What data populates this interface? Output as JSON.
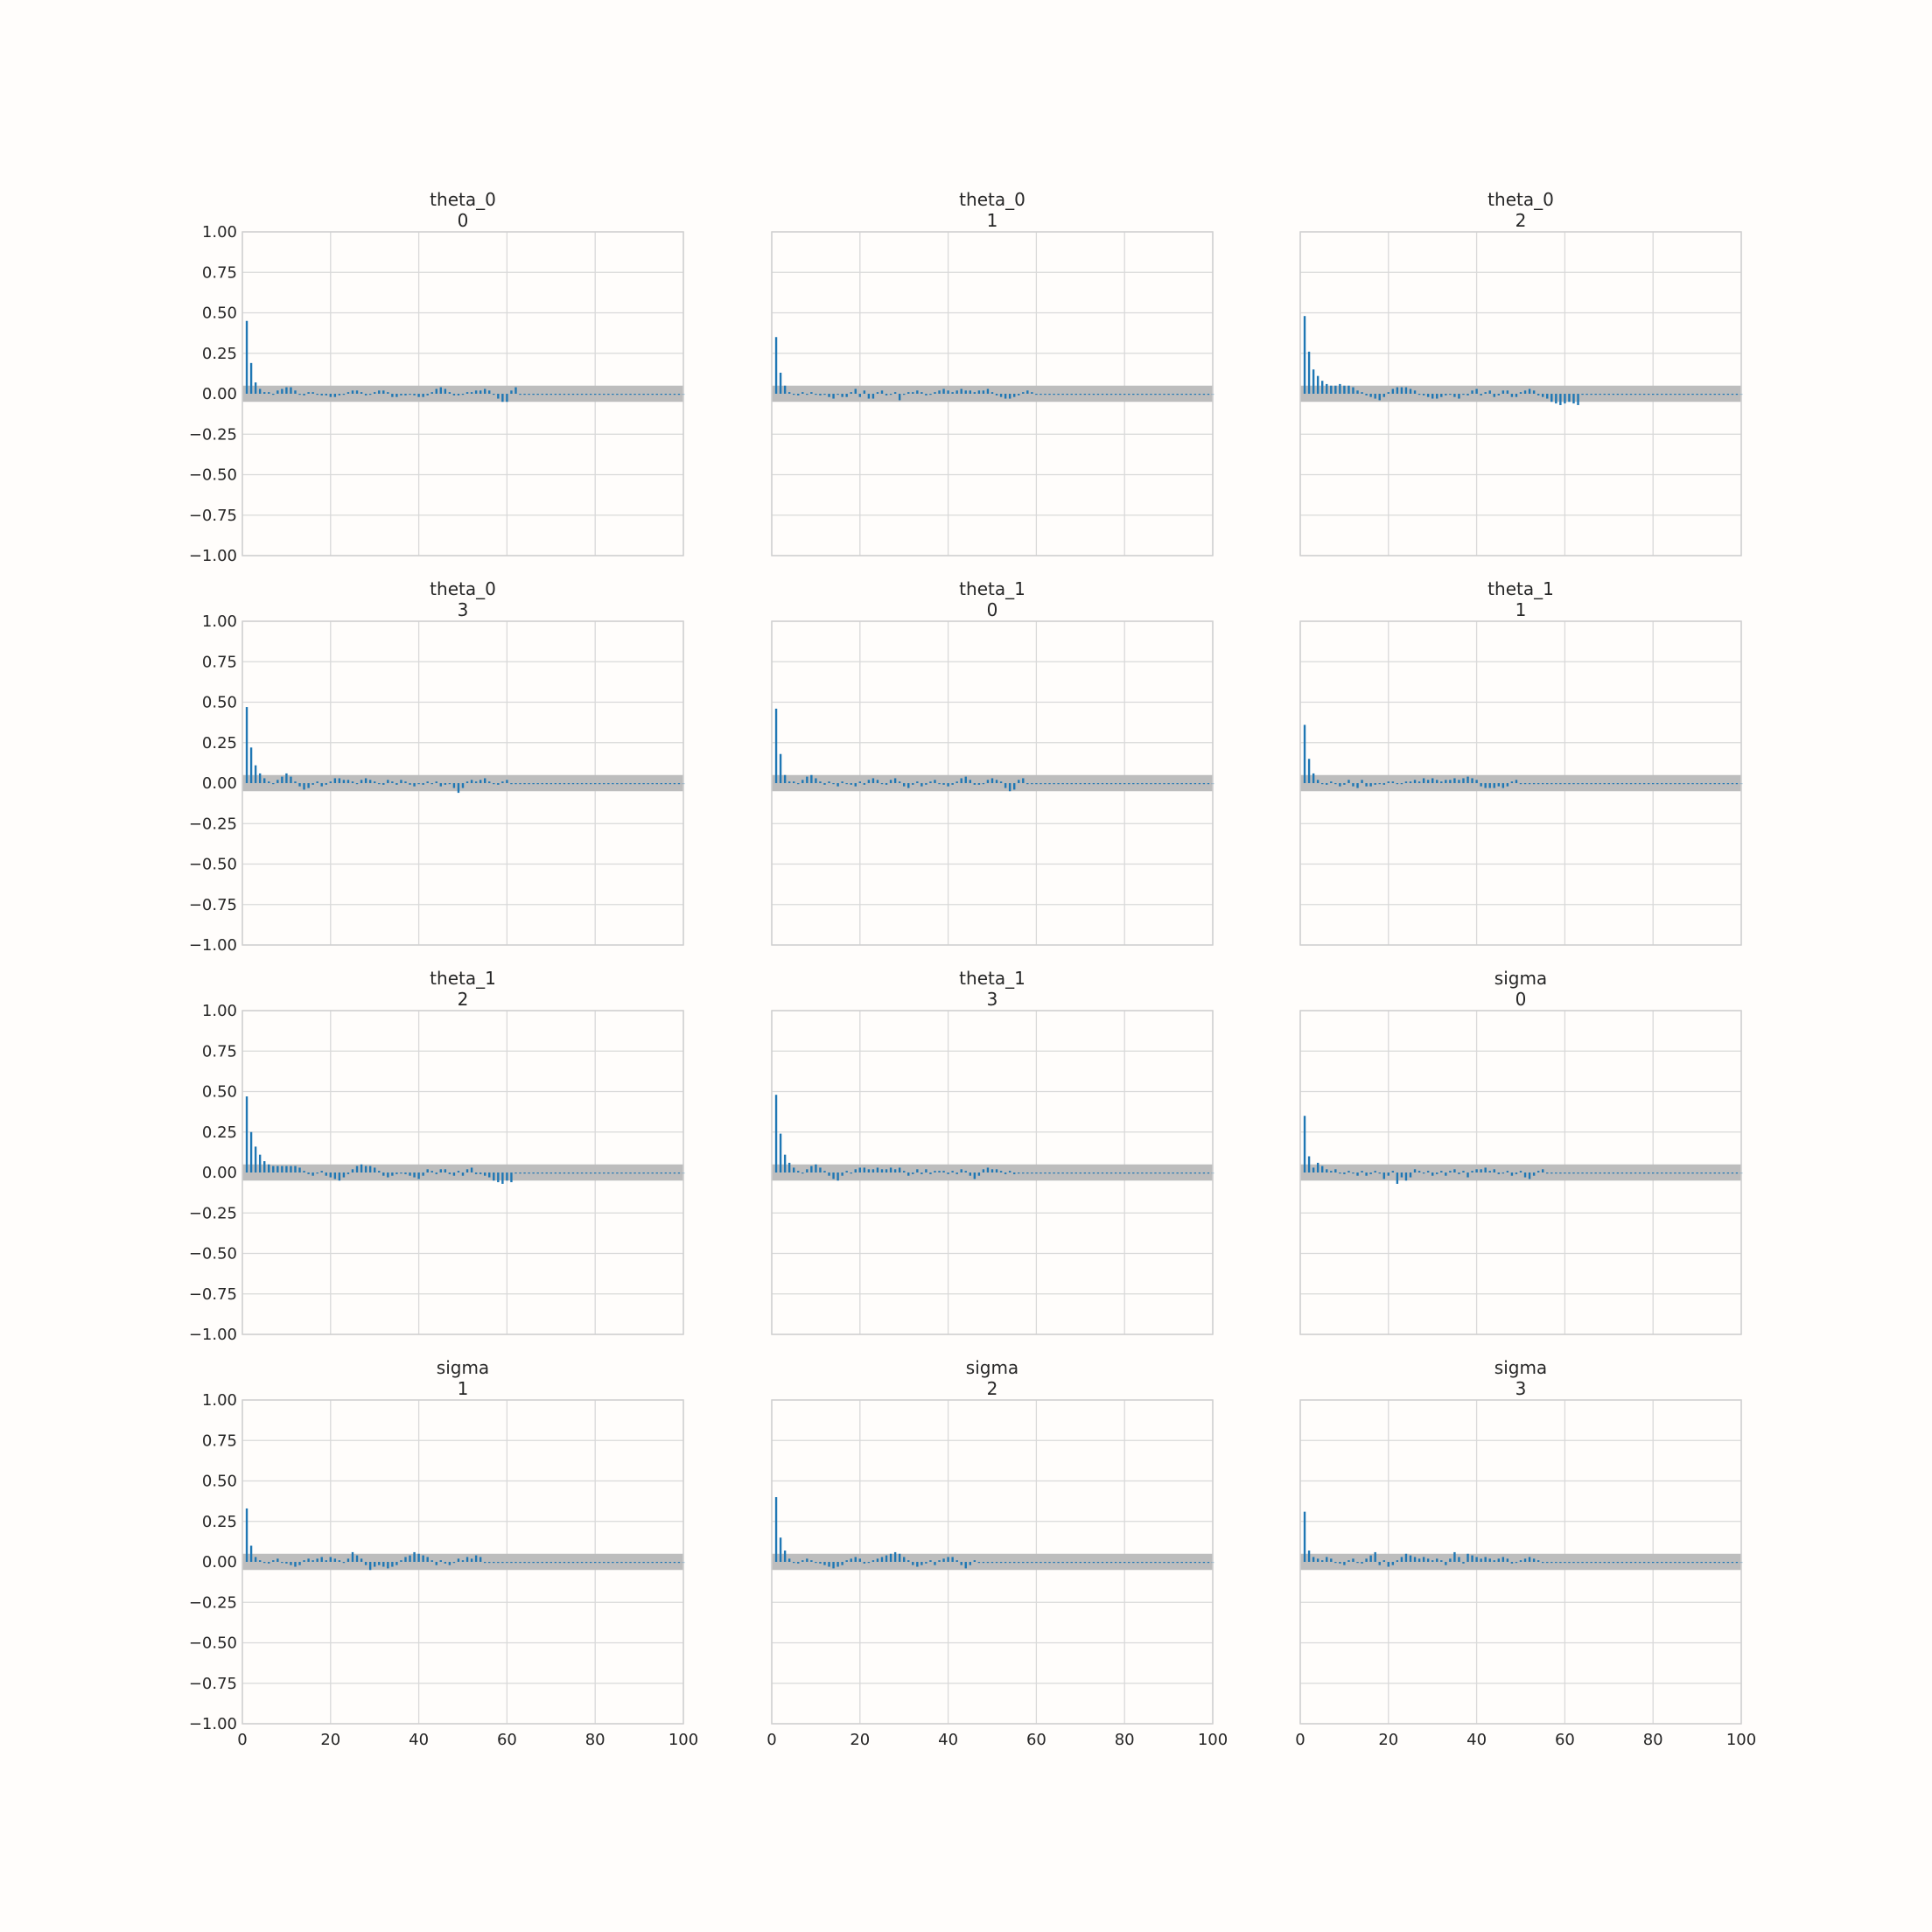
{
  "figure": {
    "background": "#fffdfb",
    "bar_color": "#1f77b4",
    "band_color": "#bdbdbd",
    "grid_color": "#d9d9d9",
    "text_color": "#262626"
  },
  "chart_data": [
    {
      "type": "bar",
      "title": "theta_0",
      "subtitle": "0",
      "xlim": [
        0,
        100
      ],
      "ylim": [
        -1,
        1
      ],
      "xticks": [
        "0",
        "20",
        "40",
        "60",
        "80",
        "100"
      ],
      "yticks": [
        "1.00",
        "0.75",
        "0.50",
        "0.25",
        "0.00",
        "−0.25",
        "−0.50",
        "−0.75",
        "−1.00"
      ],
      "band": [
        -0.05,
        0.05
      ],
      "lead": [
        0.45,
        0.19,
        0.07,
        0.03,
        0.01
      ],
      "values": [
        0.01,
        0.0,
        0.02,
        0.03,
        0.04,
        0.04,
        0.02,
        0.0,
        -0.01,
        0.01,
        0.01,
        0.0,
        -0.01,
        -0.01,
        -0.02,
        -0.02,
        -0.01,
        0.0,
        0.01,
        0.02,
        0.02,
        0.01,
        -0.01,
        0.0,
        0.01,
        0.02,
        0.02,
        0.01,
        -0.02,
        -0.02,
        -0.01,
        -0.01,
        0.0,
        -0.01,
        -0.02,
        -0.02,
        -0.01,
        0.01,
        0.03,
        0.04,
        0.03,
        0.01,
        -0.01,
        -0.01,
        0.0,
        0.01,
        0.01,
        0.02,
        0.02,
        0.03,
        0.02,
        0.0,
        -0.03,
        -0.05,
        -0.05,
        0.02,
        0.04
      ]
    },
    {
      "type": "bar",
      "title": "theta_0",
      "subtitle": "1",
      "xlim": [
        0,
        100
      ],
      "ylim": [
        -1,
        1
      ],
      "xticks": [
        "0",
        "20",
        "40",
        "60",
        "80",
        "100"
      ],
      "yticks": [
        "1.00",
        "0.75",
        "0.50",
        "0.25",
        "0.00",
        "−0.25",
        "−0.50",
        "−0.75",
        "−1.00"
      ],
      "band": [
        -0.05,
        0.05
      ],
      "lead": [
        0.35,
        0.13,
        0.05,
        0.01
      ],
      "values": [
        0.0,
        -0.01,
        0.01,
        0.0,
        0.01,
        0.0,
        -0.01,
        0.0,
        -0.02,
        -0.03,
        0.0,
        -0.02,
        -0.02,
        0.01,
        0.03,
        -0.02,
        0.02,
        -0.03,
        -0.03,
        0.01,
        0.02,
        -0.01,
        0.0,
        0.01,
        -0.04,
        0.0,
        0.01,
        0.01,
        0.02,
        0.01,
        -0.01,
        0.0,
        0.01,
        0.02,
        0.03,
        0.02,
        0.01,
        0.02,
        0.03,
        0.02,
        0.02,
        0.01,
        0.02,
        0.02,
        0.03,
        0.01,
        -0.01,
        -0.02,
        -0.03,
        -0.03,
        -0.02,
        -0.01,
        0.01,
        0.02,
        0.01
      ]
    },
    {
      "type": "bar",
      "title": "theta_0",
      "subtitle": "2",
      "xlim": [
        0,
        100
      ],
      "ylim": [
        -1,
        1
      ],
      "xticks": [
        "0",
        "20",
        "40",
        "60",
        "80",
        "100"
      ],
      "yticks": [
        "1.00",
        "0.75",
        "0.50",
        "0.25",
        "0.00",
        "−0.25",
        "−0.50",
        "−0.75",
        "−1.00"
      ],
      "band": [
        -0.05,
        0.05
      ],
      "lead": [
        0.48,
        0.26,
        0.15,
        0.11,
        0.08,
        0.06,
        0.05,
        0.05,
        0.06,
        0.05,
        0.05,
        0.04
      ],
      "values": [
        0.02,
        0.01,
        -0.01,
        -0.02,
        -0.03,
        -0.04,
        -0.02,
        0.01,
        0.03,
        0.04,
        0.04,
        0.04,
        0.03,
        0.02,
        0.0,
        -0.01,
        -0.02,
        -0.03,
        -0.03,
        -0.02,
        -0.01,
        0.0,
        -0.02,
        -0.03,
        0.0,
        -0.01,
        0.02,
        0.03,
        -0.01,
        0.01,
        0.02,
        -0.02,
        -0.01,
        0.02,
        0.02,
        -0.02,
        -0.02,
        0.01,
        0.02,
        0.03,
        0.02,
        -0.01,
        -0.02,
        -0.03,
        -0.05,
        -0.06,
        -0.07,
        -0.06,
        -0.05,
        -0.06,
        -0.07
      ]
    },
    {
      "type": "bar",
      "title": "theta_0",
      "subtitle": "3",
      "xlim": [
        0,
        100
      ],
      "ylim": [
        -1,
        1
      ],
      "xticks": [
        "0",
        "20",
        "40",
        "60",
        "80",
        "100"
      ],
      "yticks": [
        "1.00",
        "0.75",
        "0.50",
        "0.25",
        "0.00",
        "−0.25",
        "−0.50",
        "−0.75",
        "−1.00"
      ],
      "band": [
        -0.05,
        0.05
      ],
      "lead": [
        0.47,
        0.22,
        0.11,
        0.06,
        0.03
      ],
      "values": [
        0.01,
        0.0,
        0.02,
        0.04,
        0.06,
        0.04,
        0.01,
        -0.02,
        -0.04,
        -0.03,
        -0.01,
        0.01,
        -0.02,
        -0.01,
        0.01,
        0.03,
        0.03,
        0.02,
        0.02,
        0.01,
        0.0,
        0.02,
        0.03,
        0.02,
        0.01,
        0.0,
        -0.01,
        0.02,
        0.01,
        -0.01,
        0.02,
        0.01,
        -0.01,
        -0.02,
        0.0,
        -0.01,
        0.01,
        0.0,
        0.01,
        -0.02,
        -0.01,
        0.0,
        -0.03,
        -0.06,
        -0.03,
        0.01,
        0.02,
        0.01,
        0.02,
        0.03,
        0.01,
        0.0,
        -0.01,
        0.01,
        0.02
      ]
    },
    {
      "type": "bar",
      "title": "theta_1",
      "subtitle": "0",
      "xlim": [
        0,
        100
      ],
      "ylim": [
        -1,
        1
      ],
      "xticks": [
        "0",
        "20",
        "40",
        "60",
        "80",
        "100"
      ],
      "yticks": [
        "1.00",
        "0.75",
        "0.50",
        "0.25",
        "0.00",
        "−0.25",
        "−0.50",
        "−0.75",
        "−1.00"
      ],
      "band": [
        -0.05,
        0.05
      ],
      "lead": [
        0.46,
        0.18,
        0.05,
        0.01
      ],
      "values": [
        0.01,
        0.0,
        0.02,
        0.04,
        0.05,
        0.03,
        0.01,
        -0.01,
        0.01,
        0.0,
        -0.02,
        0.01,
        0.0,
        -0.01,
        -0.02,
        0.01,
        -0.01,
        0.02,
        0.03,
        0.02,
        0.0,
        -0.01,
        0.02,
        0.03,
        0.01,
        -0.02,
        -0.03,
        -0.01,
        0.01,
        -0.02,
        -0.01,
        0.01,
        0.02,
        0.0,
        -0.01,
        -0.02,
        -0.01,
        0.01,
        0.03,
        0.04,
        0.02,
        -0.01,
        -0.01,
        0.0,
        0.02,
        0.03,
        0.02,
        0.01,
        -0.03,
        -0.05,
        -0.04,
        0.02,
        0.03
      ]
    },
    {
      "type": "bar",
      "title": "theta_1",
      "subtitle": "1",
      "xlim": [
        0,
        100
      ],
      "ylim": [
        -1,
        1
      ],
      "xticks": [
        "0",
        "20",
        "40",
        "60",
        "80",
        "100"
      ],
      "yticks": [
        "1.00",
        "0.75",
        "0.50",
        "0.25",
        "0.00",
        "−0.25",
        "−0.50",
        "−0.75",
        "−1.00"
      ],
      "band": [
        -0.05,
        0.05
      ],
      "lead": [
        0.36,
        0.15,
        0.06,
        0.02
      ],
      "values": [
        0.0,
        -0.01,
        0.01,
        0.0,
        -0.02,
        -0.01,
        0.02,
        -0.02,
        -0.03,
        0.02,
        -0.02,
        -0.02,
        -0.01,
        0.0,
        -0.01,
        0.01,
        0.01,
        0.0,
        0.0,
        0.01,
        0.01,
        0.02,
        0.01,
        0.03,
        0.02,
        0.03,
        0.02,
        0.01,
        0.02,
        0.02,
        0.03,
        0.02,
        0.03,
        0.04,
        0.03,
        0.02,
        -0.02,
        -0.03,
        -0.03,
        -0.03,
        -0.02,
        -0.03,
        -0.02,
        0.01,
        0.02
      ]
    },
    {
      "type": "bar",
      "title": "theta_1",
      "subtitle": "2",
      "xlim": [
        0,
        100
      ],
      "ylim": [
        -1,
        1
      ],
      "xticks": [
        "0",
        "20",
        "40",
        "60",
        "80",
        "100"
      ],
      "yticks": [
        "1.00",
        "0.75",
        "0.50",
        "0.25",
        "0.00",
        "−0.25",
        "−0.50",
        "−0.75",
        "−1.00"
      ],
      "band": [
        -0.05,
        0.05
      ],
      "lead": [
        0.47,
        0.25,
        0.16,
        0.11,
        0.07,
        0.05,
        0.04,
        0.04,
        0.04,
        0.04,
        0.04,
        0.04,
        0.03
      ],
      "values": [
        0.01,
        -0.01,
        -0.02,
        0.0,
        0.01,
        -0.02,
        -0.03,
        -0.04,
        -0.05,
        -0.03,
        -0.01,
        0.02,
        0.04,
        0.05,
        0.04,
        0.04,
        0.03,
        0.01,
        -0.02,
        -0.03,
        -0.02,
        -0.01,
        0.0,
        -0.01,
        -0.02,
        -0.03,
        -0.04,
        -0.02,
        0.02,
        0.01,
        -0.01,
        0.02,
        0.02,
        -0.01,
        -0.02,
        0.01,
        -0.02,
        0.02,
        0.03,
        -0.01,
        -0.01,
        -0.02,
        -0.03,
        -0.05,
        -0.06,
        -0.07,
        -0.05,
        -0.06
      ]
    },
    {
      "type": "bar",
      "title": "theta_1",
      "subtitle": "3",
      "xlim": [
        0,
        100
      ],
      "ylim": [
        -1,
        1
      ],
      "xticks": [
        "0",
        "20",
        "40",
        "60",
        "80",
        "100"
      ],
      "yticks": [
        "1.00",
        "0.75",
        "0.50",
        "0.25",
        "0.00",
        "−0.25",
        "−0.50",
        "−0.75",
        "−1.00"
      ],
      "band": [
        -0.05,
        0.05
      ],
      "lead": [
        0.48,
        0.24,
        0.11,
        0.06,
        0.03
      ],
      "values": [
        0.01,
        0.0,
        0.02,
        0.04,
        0.05,
        0.03,
        0.01,
        -0.02,
        -0.04,
        -0.05,
        -0.02,
        0.01,
        0.0,
        0.02,
        0.03,
        0.03,
        0.02,
        0.02,
        0.03,
        0.02,
        0.02,
        0.03,
        0.02,
        0.03,
        0.01,
        -0.02,
        -0.01,
        0.02,
        -0.01,
        0.02,
        -0.01,
        0.01,
        0.01,
        0.01,
        -0.01,
        0.01,
        -0.01,
        0.02,
        0.01,
        -0.02,
        -0.04,
        -0.02,
        0.02,
        0.03,
        0.02,
        0.02,
        0.01,
        -0.01,
        0.01,
        -0.01
      ]
    },
    {
      "type": "bar",
      "title": "sigma",
      "subtitle": "0",
      "xlim": [
        0,
        100
      ],
      "ylim": [
        -1,
        1
      ],
      "xticks": [
        "0",
        "20",
        "40",
        "60",
        "80",
        "100"
      ],
      "yticks": [
        "1.00",
        "0.75",
        "0.50",
        "0.25",
        "0.00",
        "−0.25",
        "−0.50",
        "−0.75",
        "−1.00"
      ],
      "band": [
        -0.05,
        0.05
      ],
      "lead": [
        0.35,
        0.1,
        0.03,
        0.06,
        0.04,
        0.02
      ],
      "values": [
        0.01,
        0.02,
        0.0,
        -0.01,
        0.01,
        0.0,
        -0.02,
        0.01,
        -0.02,
        -0.01,
        0.01,
        0.0,
        -0.04,
        -0.02,
        0.01,
        -0.07,
        -0.03,
        -0.05,
        -0.03,
        0.02,
        0.01,
        0.0,
        0.01,
        -0.02,
        -0.01,
        0.01,
        -0.02,
        0.01,
        0.02,
        -0.01,
        0.01,
        -0.03,
        0.01,
        0.02,
        0.02,
        0.03,
        0.01,
        0.02,
        -0.01,
        0.0,
        0.01,
        -0.02,
        -0.01,
        0.01,
        -0.03,
        -0.04,
        -0.02,
        0.01,
        0.02
      ]
    },
    {
      "type": "bar",
      "title": "sigma",
      "subtitle": "1",
      "xlim": [
        0,
        100
      ],
      "ylim": [
        -1,
        1
      ],
      "xticks": [
        "0",
        "20",
        "40",
        "60",
        "80",
        "100"
      ],
      "yticks": [
        "1.00",
        "0.75",
        "0.50",
        "0.25",
        "0.00",
        "−0.25",
        "−0.50",
        "−0.75",
        "−1.00"
      ],
      "band": [
        -0.05,
        0.05
      ],
      "lead": [
        0.33,
        0.1,
        0.03
      ],
      "values": [
        0.01,
        0.0,
        -0.01,
        0.01,
        0.02,
        0.0,
        -0.01,
        -0.02,
        -0.03,
        -0.02,
        0.01,
        0.02,
        0.01,
        0.02,
        0.03,
        0.01,
        0.03,
        0.02,
        0.01,
        0.0,
        0.02,
        0.06,
        0.04,
        0.02,
        -0.02,
        -0.05,
        -0.03,
        -0.02,
        -0.03,
        -0.04,
        -0.03,
        -0.02,
        0.01,
        0.03,
        0.04,
        0.06,
        0.05,
        0.04,
        0.03,
        0.01,
        -0.02,
        0.01,
        -0.01,
        -0.02,
        0.0,
        0.02,
        0.01,
        0.03,
        0.02,
        0.04,
        0.03
      ]
    },
    {
      "type": "bar",
      "title": "sigma",
      "subtitle": "2",
      "xlim": [
        0,
        100
      ],
      "ylim": [
        -1,
        1
      ],
      "xticks": [
        "0",
        "20",
        "40",
        "60",
        "80",
        "100"
      ],
      "yticks": [
        "1.00",
        "0.75",
        "0.50",
        "0.25",
        "0.00",
        "−0.25",
        "−0.50",
        "−0.75",
        "−1.00"
      ],
      "band": [
        -0.05,
        0.05
      ],
      "lead": [
        0.4,
        0.15,
        0.07,
        0.02
      ],
      "values": [
        0.0,
        -0.01,
        0.01,
        0.02,
        0.01,
        0.0,
        -0.01,
        -0.02,
        -0.03,
        -0.04,
        -0.03,
        -0.02,
        0.01,
        0.02,
        0.03,
        0.02,
        -0.01,
        0.0,
        0.01,
        0.02,
        0.03,
        0.04,
        0.05,
        0.06,
        0.05,
        0.03,
        0.01,
        -0.02,
        -0.03,
        -0.02,
        -0.01,
        0.01,
        -0.02,
        0.01,
        0.02,
        0.03,
        0.03,
        0.01,
        -0.02,
        -0.04,
        -0.02,
        0.01
      ]
    },
    {
      "type": "bar",
      "title": "sigma",
      "subtitle": "3",
      "xlim": [
        0,
        100
      ],
      "ylim": [
        -1,
        1
      ],
      "xticks": [
        "0",
        "20",
        "40",
        "60",
        "80",
        "100"
      ],
      "yticks": [
        "1.00",
        "0.75",
        "0.50",
        "0.25",
        "0.00",
        "−0.25",
        "−0.50",
        "−0.75",
        "−1.00"
      ],
      "band": [
        -0.05,
        0.05
      ],
      "lead": [
        0.31,
        0.07,
        0.03
      ],
      "values": [
        0.02,
        0.01,
        0.03,
        0.02,
        0.0,
        -0.01,
        -0.02,
        0.01,
        0.02,
        0.0,
        -0.01,
        0.02,
        0.04,
        0.06,
        -0.02,
        0.01,
        -0.03,
        -0.02,
        0.01,
        0.03,
        0.05,
        0.04,
        0.03,
        0.02,
        0.03,
        0.02,
        0.01,
        0.02,
        0.01,
        -0.02,
        0.02,
        0.06,
        0.03,
        -0.01,
        0.05,
        0.04,
        0.03,
        0.02,
        0.03,
        0.02,
        0.01,
        0.02,
        0.03,
        0.02,
        -0.01,
        0.0,
        0.01,
        0.02,
        0.03,
        0.02,
        0.01
      ]
    }
  ]
}
